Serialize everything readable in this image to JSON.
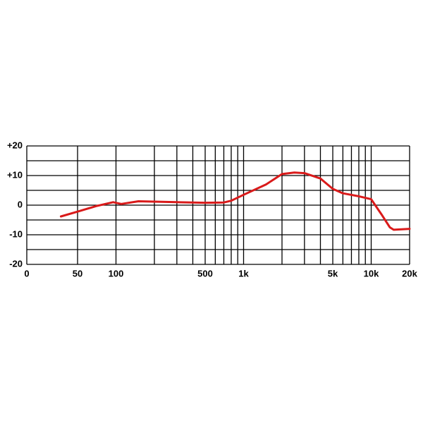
{
  "chart_data": {
    "type": "line",
    "xscale": "log",
    "x": [
      37,
      50,
      70,
      95,
      110,
      150,
      300,
      500,
      700,
      800,
      1000,
      1500,
      2000,
      2500,
      3000,
      4000,
      5000,
      6000,
      8000,
      10000,
      12000,
      14000,
      15000,
      20000
    ],
    "series": [
      {
        "color": "#d91a1a",
        "values": [
          -3.8,
          -2.2,
          -0.3,
          1.0,
          0.4,
          1.3,
          1.0,
          0.8,
          0.9,
          1.5,
          3.5,
          7,
          10.5,
          11,
          10.8,
          9,
          5.5,
          4,
          3,
          2,
          -3,
          -7.5,
          -8.3,
          -8
        ]
      }
    ],
    "xlim": [
      20,
      20000
    ],
    "xticks": [
      {
        "value": 20,
        "label": "0"
      },
      50,
      100,
      500,
      {
        "value": 1000,
        "label": "1k"
      },
      {
        "value": 5000,
        "label": "5k"
      },
      {
        "value": 10000,
        "label": "10k"
      },
      {
        "value": 20000,
        "label": "20k"
      }
    ],
    "xgrid": [
      200,
      300,
      400,
      600,
      700,
      800,
      900,
      2000,
      3000,
      4000,
      6000,
      7000,
      8000,
      9000
    ],
    "ylim": [
      -20,
      20
    ],
    "yticks": [
      {
        "value": -20,
        "label": "-20"
      },
      {
        "value": -10,
        "label": "-10"
      },
      0,
      {
        "value": 10,
        "label": "+10"
      },
      {
        "value": 20,
        "label": "+20"
      }
    ],
    "ygrid": [
      -15,
      -5,
      5,
      15
    ],
    "grid": true
  }
}
